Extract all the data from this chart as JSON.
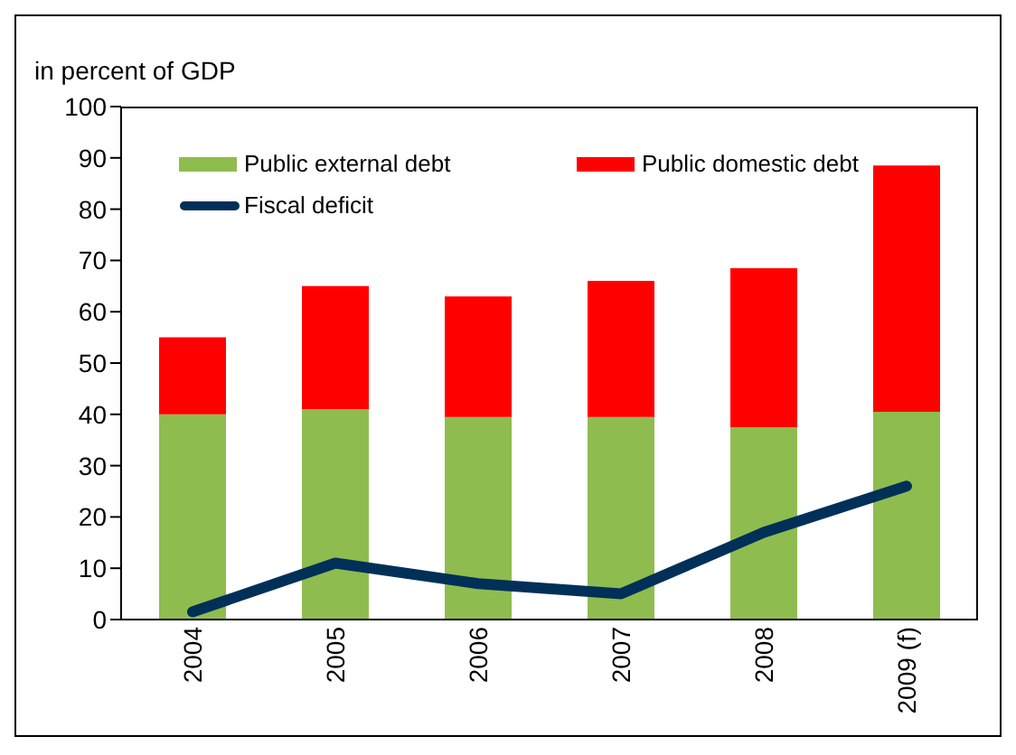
{
  "chart_data": {
    "type": "bar",
    "ylabel": "in percent of GDP",
    "categories": [
      "2004",
      "2005",
      "2006",
      "2007",
      "2008",
      "2009 (f)"
    ],
    "stacked": true,
    "ylim": [
      0,
      100
    ],
    "yticks": [
      0,
      10,
      20,
      30,
      40,
      50,
      60,
      70,
      80,
      90,
      100
    ],
    "grid": false,
    "legend": "top left",
    "series": [
      {
        "name": "Public external debt",
        "color": "#8fbc4f",
        "values": [
          40,
          41,
          39.5,
          39.5,
          37.5,
          40.5
        ]
      },
      {
        "name": "Public domestic debt",
        "color": "#ff0000",
        "values": [
          15,
          24,
          23.5,
          26.5,
          31,
          48
        ]
      },
      {
        "name": "Fiscal deficit",
        "type": "line",
        "color": "#003058",
        "values": [
          1.5,
          11,
          7,
          5,
          17,
          26
        ]
      }
    ]
  }
}
